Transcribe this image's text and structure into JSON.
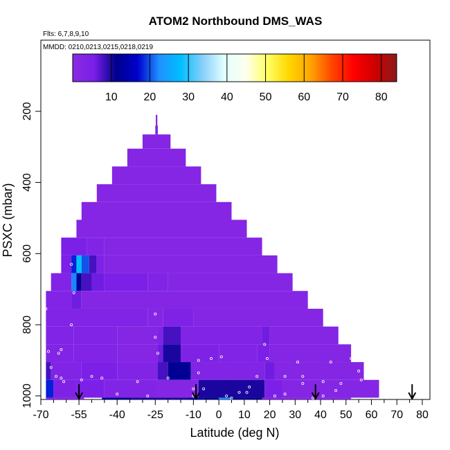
{
  "chart_data": {
    "type": "heatmap",
    "title": "ATOM2 Northbound DMS_WAS",
    "flights_label": "Flts: 6,7,8,9,10",
    "dates_label": "MMDD: 0210,0213,0215,0218,0219",
    "xlabel": "Latitude (deg N)",
    "ylabel": "PSXC (mbar)",
    "xlim": [
      -70,
      83
    ],
    "ylim": [
      1010,
      0
    ],
    "x_ticks": [
      -70,
      -55,
      -40,
      -25,
      -10,
      0,
      10,
      20,
      30,
      40,
      50,
      60,
      70,
      80
    ],
    "x_minor_ticks": [
      -65,
      -60,
      -50,
      -45,
      -35,
      -30,
      -20,
      -15,
      -5,
      5,
      15,
      25,
      35,
      45,
      55,
      65,
      75
    ],
    "y_ticks": [
      200,
      400,
      600,
      800,
      1000
    ],
    "colorbar": {
      "min": 0,
      "max": 84,
      "ticks": [
        10,
        20,
        30,
        40,
        50,
        60,
        70,
        80
      ],
      "colors": [
        "#8a2be2",
        "#7a1ee8",
        "#00008b",
        "#0000cd",
        "#1e90ff",
        "#00bfff",
        "#87cefa",
        "#e0ffff",
        "#fffff0",
        "#ffff66",
        "#ffd700",
        "#ffa500",
        "#ff4500",
        "#ff0000",
        "#cd0000",
        "#8b1a1a"
      ]
    },
    "rows": [
      {
        "p": 230,
        "cells": [
          [
            -24.8,
            -24.2,
            2
          ]
        ]
      },
      {
        "p": 250,
        "cells": [
          [
            -25,
            -24,
            2
          ]
        ]
      },
      {
        "p": 280,
        "cells": [
          [
            -30,
            -19,
            2
          ]
        ]
      },
      {
        "p": 330,
        "cells": [
          [
            -36,
            -13,
            2
          ]
        ]
      },
      {
        "p": 380,
        "cells": [
          [
            -42,
            -7,
            2
          ]
        ]
      },
      {
        "p": 430,
        "cells": [
          [
            -48,
            -1,
            2
          ]
        ]
      },
      {
        "p": 480,
        "cells": [
          [
            -54,
            5,
            2
          ]
        ]
      },
      {
        "p": 530,
        "cells": [
          [
            -56,
            11,
            2
          ]
        ]
      },
      {
        "p": 580,
        "cells": [
          [
            -62,
            -52,
            5
          ],
          [
            -52,
            -45,
            3
          ],
          [
            -45,
            17,
            2
          ]
        ]
      },
      {
        "p": 630,
        "cells": [
          [
            -62,
            -58,
            5
          ],
          [
            -58,
            -56,
            18
          ],
          [
            -56,
            -54,
            28
          ],
          [
            -54,
            -51,
            20
          ],
          [
            -51,
            -48,
            8
          ],
          [
            -48,
            -45,
            4
          ],
          [
            -45,
            23,
            2
          ]
        ]
      },
      {
        "p": 680,
        "cells": [
          [
            -66,
            -58,
            3
          ],
          [
            -58,
            -56,
            22
          ],
          [
            -56,
            -54,
            12
          ],
          [
            -54,
            -50,
            8
          ],
          [
            -50,
            -45,
            6
          ],
          [
            -45,
            -28,
            5
          ],
          [
            -28,
            -20,
            3
          ],
          [
            -20,
            29,
            2
          ]
        ]
      },
      {
        "p": 730,
        "cells": [
          [
            -68,
            -58,
            3
          ],
          [
            -58,
            -54,
            6
          ],
          [
            -54,
            35,
            2
          ]
        ]
      },
      {
        "p": 780,
        "cells": [
          [
            -68,
            -28,
            3
          ],
          [
            -28,
            -22,
            2
          ],
          [
            -22,
            -10,
            4
          ],
          [
            -10,
            41,
            2
          ]
        ]
      },
      {
        "p": 830,
        "cells": [
          [
            -68,
            -57,
            3
          ],
          [
            -57,
            -40,
            3
          ],
          [
            -40,
            -24,
            2
          ],
          [
            -24,
            -22,
            4
          ],
          [
            -22,
            -15,
            8
          ],
          [
            -15,
            17,
            3
          ],
          [
            17,
            20,
            6
          ],
          [
            20,
            47,
            2
          ]
        ]
      },
      {
        "p": 880,
        "cells": [
          [
            -68,
            -57,
            3
          ],
          [
            -57,
            -40,
            3
          ],
          [
            -40,
            -24,
            2
          ],
          [
            -24,
            -22,
            6
          ],
          [
            -22,
            -15,
            10
          ],
          [
            -15,
            0,
            4
          ],
          [
            0,
            15,
            3
          ],
          [
            15,
            20,
            5
          ],
          [
            20,
            52,
            2
          ]
        ]
      },
      {
        "p": 930,
        "cells": [
          [
            -68,
            -66,
            8
          ],
          [
            -66,
            -54,
            3
          ],
          [
            -54,
            -40,
            5
          ],
          [
            -40,
            -24,
            3
          ],
          [
            -24,
            -20,
            8
          ],
          [
            -20,
            -11,
            12
          ],
          [
            -11,
            5,
            3
          ],
          [
            5,
            18,
            3
          ],
          [
            18,
            22,
            6
          ],
          [
            22,
            57,
            2
          ]
        ]
      },
      {
        "p": 980,
        "cells": [
          [
            -68,
            -65,
            18
          ],
          [
            -65,
            -56,
            4
          ],
          [
            -56,
            -45,
            5
          ],
          [
            -45,
            -24,
            3
          ],
          [
            -24,
            -8,
            2
          ],
          [
            -8,
            18,
            10
          ],
          [
            18,
            25,
            5
          ],
          [
            25,
            63,
            2
          ]
        ]
      },
      {
        "p": 1030,
        "cells": [
          [
            -68,
            -53,
            2
          ],
          [
            -46,
            -34,
            12
          ],
          [
            -34,
            -12,
            10
          ],
          [
            -12,
            -6,
            14
          ],
          [
            -6,
            0,
            11
          ],
          [
            0,
            5,
            22
          ],
          [
            5,
            10,
            12
          ],
          [
            10,
            17,
            12
          ],
          [
            17,
            25,
            3
          ],
          [
            25,
            52,
            2
          ]
        ]
      }
    ],
    "obs_points": [
      [
        -68,
        755
      ],
      [
        -67,
        875
      ],
      [
        -66,
        920
      ],
      [
        -64,
        945
      ],
      [
        -63,
        880
      ],
      [
        -62,
        870
      ],
      [
        -62,
        950
      ],
      [
        -61,
        960
      ],
      [
        -58,
        800
      ],
      [
        -58,
        630
      ],
      [
        -57,
        710
      ],
      [
        -54,
        955
      ],
      [
        -50,
        945
      ],
      [
        -46,
        950
      ],
      [
        -40,
        995
      ],
      [
        -32,
        960
      ],
      [
        -28,
        1000
      ],
      [
        -25,
        770
      ],
      [
        -25,
        835
      ],
      [
        -24,
        880
      ],
      [
        -20,
        950
      ],
      [
        -10,
        1000
      ],
      [
        -10,
        980
      ],
      [
        -8,
        900
      ],
      [
        -8,
        935
      ],
      [
        -6,
        980
      ],
      [
        -3,
        895
      ],
      [
        1,
        890
      ],
      [
        3,
        1000
      ],
      [
        5,
        1015
      ],
      [
        8,
        990
      ],
      [
        11,
        990
      ],
      [
        12,
        975
      ],
      [
        15,
        945
      ],
      [
        18,
        855
      ],
      [
        19,
        895
      ],
      [
        22,
        1000
      ],
      [
        26,
        945
      ],
      [
        26,
        995
      ],
      [
        31,
        905
      ],
      [
        33,
        945
      ],
      [
        33,
        965
      ],
      [
        37,
        1015
      ],
      [
        41,
        1000
      ],
      [
        41,
        960
      ],
      [
        44,
        905
      ],
      [
        46,
        985
      ],
      [
        48,
        965
      ],
      [
        52,
        895
      ],
      [
        55,
        930
      ],
      [
        56,
        955
      ]
    ],
    "arrows": [
      -55,
      -9,
      38,
      76
    ]
  }
}
